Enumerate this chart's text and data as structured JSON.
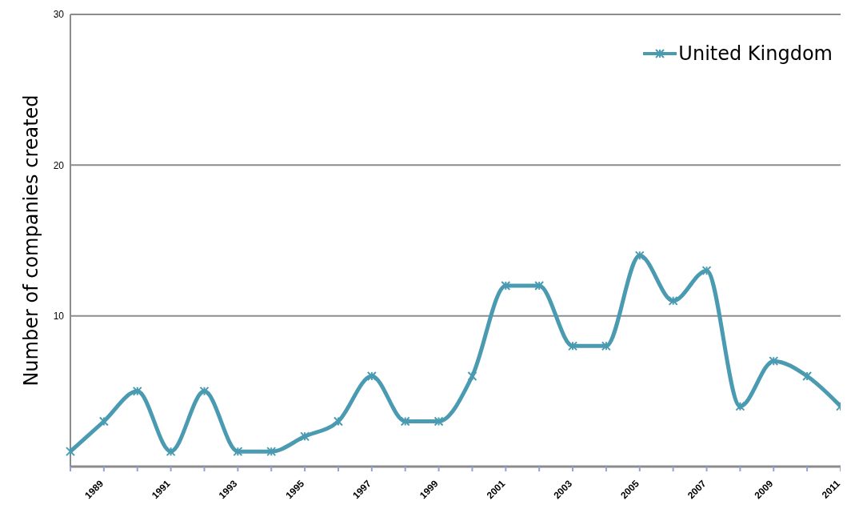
{
  "chart_data": {
    "type": "line",
    "ylabel": "Number of companies created",
    "categories": [
      null,
      "1989",
      null,
      "1991",
      null,
      "1993",
      null,
      "1995",
      null,
      "1997",
      null,
      "1999",
      null,
      "2001",
      null,
      "2003",
      null,
      "2005",
      null,
      "2007",
      null,
      "2009",
      null,
      "2011"
    ],
    "series": [
      {
        "name": "United Kingdom",
        "color": "#4a9bb1",
        "values": [
          1,
          3,
          5,
          1,
          5,
          1,
          1,
          2,
          3,
          6,
          3,
          3,
          6,
          12,
          12,
          8,
          8,
          14,
          11,
          13,
          4,
          7,
          6,
          4
        ]
      }
    ],
    "ylim": [
      0,
      30
    ],
    "yticks": [
      {
        "value": 0,
        "label": null
      },
      10,
      20,
      30
    ],
    "grid": "y",
    "legend": "top right",
    "marker": "cross",
    "line_style": "solid"
  }
}
